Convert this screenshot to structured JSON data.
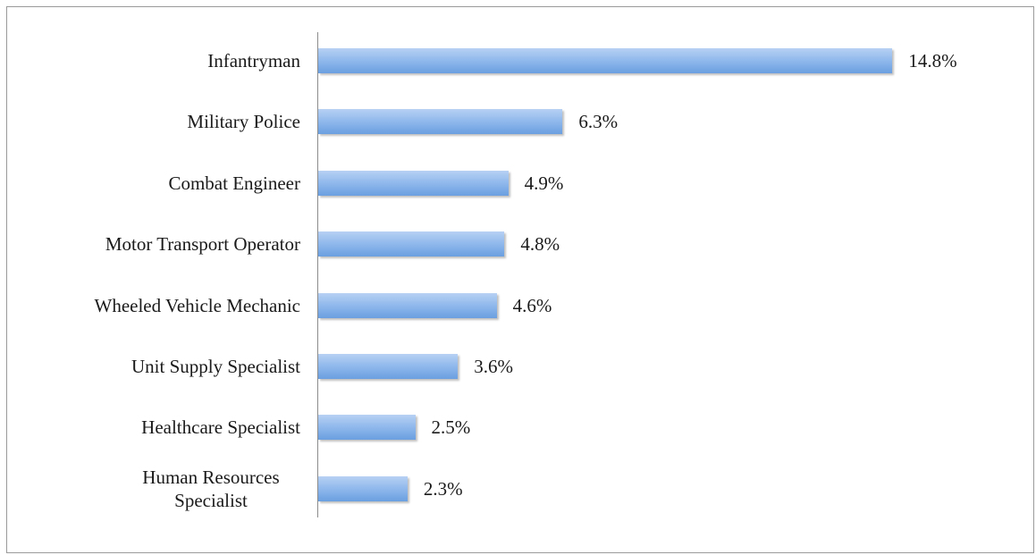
{
  "chart_data": {
    "type": "bar",
    "orientation": "horizontal",
    "categories": [
      "Infantryman",
      "Military Police",
      "Combat Engineer",
      "Motor Transport Operator",
      "Wheeled Vehicle Mechanic",
      "Unit Supply Specialist",
      "Healthcare Specialist",
      "Human Resources Specialist"
    ],
    "values": [
      14.8,
      6.3,
      4.9,
      4.8,
      4.6,
      3.6,
      2.5,
      2.3
    ],
    "value_labels": [
      "14.8%",
      "6.3%",
      "4.9%",
      "4.8%",
      "4.6%",
      "3.6%",
      "2.5%",
      "2.3%"
    ],
    "color": "#7eaee6"
  }
}
